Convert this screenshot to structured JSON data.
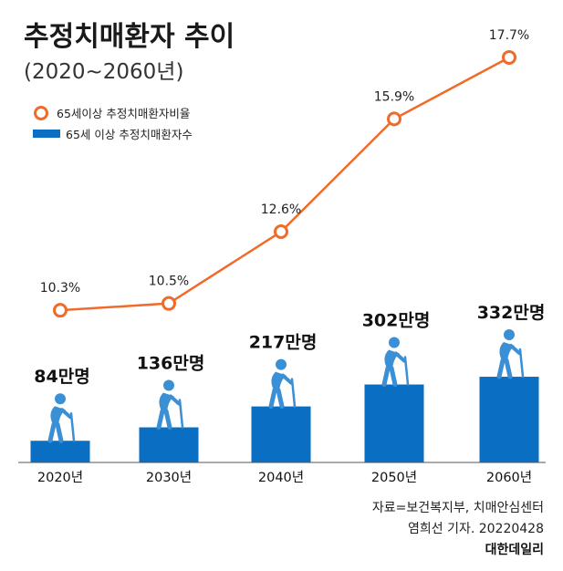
{
  "chart_data": {
    "type": "bar+line",
    "title": "추정치매환자 추이",
    "subtitle": "(2020~2060년)",
    "categories": [
      "2020년",
      "2030년",
      "2040년",
      "2050년",
      "2060년"
    ],
    "series": [
      {
        "name": "65세이상 추정치매환자비율",
        "type": "line",
        "values": [
          10.3,
          10.5,
          12.6,
          15.9,
          17.7
        ],
        "labels": [
          "10.3%",
          "10.5%",
          "12.6%",
          "15.9%",
          "17.7%"
        ]
      },
      {
        "name": "65세 이상 추정치매환자수",
        "type": "bar",
        "values": [
          84,
          136,
          217,
          302,
          332
        ],
        "unit": "만명",
        "labels": [
          "84만명",
          "136만명",
          "217만명",
          "302만명",
          "332만명"
        ]
      }
    ],
    "legend_position": "top-left",
    "grid": false
  },
  "footer": {
    "source": "자료=보건복지부, 치매안심센터",
    "byline": "염희선 기자. 20220428",
    "brand": "대한데일리"
  },
  "colors": {
    "line": "#F06A2A",
    "bar": "#0A6FC2",
    "figure": "#3B8FD4"
  }
}
